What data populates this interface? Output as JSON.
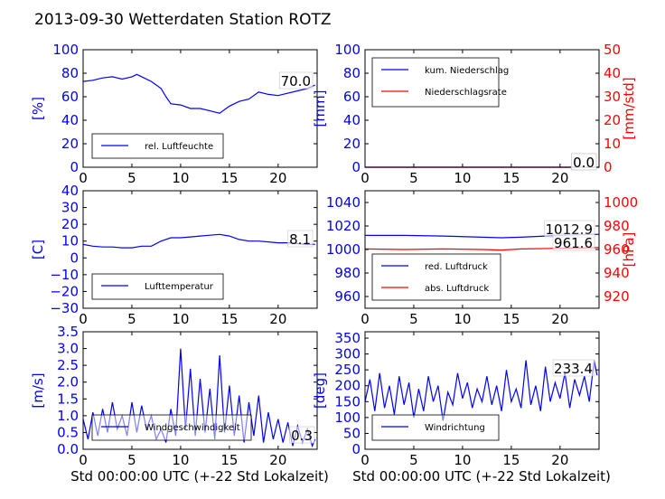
{
  "title": "2013-09-30 Wetterdaten Station ROTZ",
  "xlabel": "Std 00:00:00 UTC (+-22 Std Lokalzeit)",
  "colors": {
    "blue": "#0000ff",
    "red": "#ff0000",
    "black": "#000000"
  },
  "chart_data": [
    {
      "type": "line",
      "ylabel": "[%]",
      "ylim": [
        0,
        100
      ],
      "yticks": [
        "0",
        "20",
        "40",
        "60",
        "80",
        "100"
      ],
      "xlim": [
        0,
        24
      ],
      "xticks": [
        "0",
        "5",
        "10",
        "15",
        "20"
      ],
      "legend": {
        "placement": "lower-left",
        "entries": [
          "rel. Luftfeuchte"
        ]
      },
      "last_labels": [
        "70.0"
      ],
      "series": [
        {
          "name": "rel. Luftfeuchte",
          "axis": "left",
          "color": "#0000ff",
          "x": [
            0,
            1,
            2,
            3,
            4,
            5,
            5.5,
            6,
            7,
            8,
            8.5,
            9,
            10,
            11,
            12,
            13,
            13.5,
            14,
            15,
            16,
            17,
            18,
            19,
            20,
            21,
            22,
            23,
            23.8
          ],
          "y": [
            73,
            74,
            76,
            77,
            75,
            77,
            79,
            77,
            73,
            67,
            60,
            54,
            53,
            50,
            50,
            48,
            47,
            46,
            52,
            56,
            58,
            64,
            62,
            61,
            63,
            65,
            67,
            70
          ]
        }
      ]
    },
    {
      "type": "line",
      "ylabel": "[mm]",
      "ylabel_right": "[mm/std]",
      "ylim": [
        0,
        100
      ],
      "ylim_right": [
        0,
        50
      ],
      "yticks": [
        "0",
        "20",
        "40",
        "60",
        "80",
        "100"
      ],
      "yticks_right": [
        "0",
        "10",
        "20",
        "30",
        "40",
        "50"
      ],
      "xlim": [
        0,
        24
      ],
      "xticks": [
        "0",
        "5",
        "10",
        "15",
        "20"
      ],
      "legend": {
        "placement": "upper-left",
        "entries": [
          "kum. Niederschlag",
          "Niederschlagsrate"
        ]
      },
      "last_labels": [
        "0.0",
        "0.0"
      ],
      "series": [
        {
          "name": "kum. Niederschlag",
          "axis": "left",
          "color": "#0000ff",
          "x": [
            0,
            24
          ],
          "y": [
            0,
            0
          ]
        },
        {
          "name": "Niederschlagsrate",
          "axis": "right",
          "color": "#ff0000",
          "x": [
            0,
            24
          ],
          "y": [
            0,
            0
          ]
        }
      ]
    },
    {
      "type": "line",
      "ylabel": "[C]",
      "ylim": [
        -30,
        40
      ],
      "yticks": [
        "−30",
        "−20",
        "−10",
        "0",
        "10",
        "20",
        "30",
        "40"
      ],
      "xlim": [
        0,
        24
      ],
      "xticks": [
        "0",
        "5",
        "10",
        "15",
        "20"
      ],
      "legend": {
        "placement": "lower-left",
        "entries": [
          "Lufttemperatur"
        ]
      },
      "last_labels": [
        "8.1"
      ],
      "series": [
        {
          "name": "Lufttemperatur",
          "axis": "left",
          "color": "#0000ff",
          "x": [
            0,
            1,
            2,
            3,
            4,
            5,
            6,
            7,
            8,
            9,
            10,
            11,
            12,
            13,
            14,
            15,
            16,
            17,
            18,
            19,
            20,
            21,
            22,
            23,
            23.8
          ],
          "y": [
            8,
            7,
            6.5,
            6.5,
            6,
            6,
            7,
            7,
            10,
            12,
            12,
            12.5,
            13,
            13.5,
            14,
            13,
            11,
            10,
            10,
            9.5,
            9,
            9,
            8.5,
            8,
            8.1
          ]
        }
      ]
    },
    {
      "type": "line",
      "ylabel_right": "[hPa]",
      "ylim": [
        950,
        1050
      ],
      "ylim_right": [
        910,
        1010
      ],
      "yticks": [
        "960",
        "980",
        "1000",
        "1020",
        "1040"
      ],
      "yticks_right": [
        "920",
        "940",
        "960",
        "980",
        "1000"
      ],
      "xlim": [
        0,
        24
      ],
      "xticks": [
        "0",
        "5",
        "10",
        "15",
        "20"
      ],
      "legend": {
        "placement": "lower-left",
        "entries": [
          "red. Luftdruck",
          "abs. Luftdruck"
        ]
      },
      "last_labels": [
        "1012.9",
        "961.6"
      ],
      "series": [
        {
          "name": "red. Luftdruck",
          "axis": "left",
          "color": "#0000ff",
          "x": [
            0,
            4,
            8,
            12,
            14,
            16,
            20,
            24
          ],
          "y": [
            1012,
            1012,
            1011.5,
            1010.5,
            1010,
            1010.5,
            1012,
            1012.9
          ]
        },
        {
          "name": "abs. Luftdruck",
          "axis": "right",
          "color": "#ff0000",
          "x": [
            0,
            4,
            8,
            12,
            14,
            16,
            20,
            24
          ],
          "y": [
            960.5,
            960,
            960.5,
            960,
            959.5,
            960.5,
            961,
            961.6
          ]
        }
      ]
    },
    {
      "type": "line",
      "ylabel": "[m/s]",
      "ylim": [
        0,
        3.5
      ],
      "yticks": [
        "0.0",
        "0.5",
        "1.0",
        "1.5",
        "2.0",
        "2.5",
        "3.0",
        "3.5"
      ],
      "xlim": [
        0,
        24
      ],
      "xticks": [
        "0",
        "5",
        "10",
        "15",
        "20"
      ],
      "legend": {
        "placement": "lower-left",
        "entries": [
          "Windgeschwindigkeit"
        ]
      },
      "last_labels": [
        "0.3"
      ],
      "series": [
        {
          "name": "Windgeschwindigkeit",
          "axis": "left",
          "color": "#0000ff",
          "x": [
            0,
            0.5,
            1,
            1.5,
            2,
            2.5,
            3,
            3.5,
            4,
            4.5,
            5,
            5.5,
            6,
            6.5,
            7,
            7.5,
            8,
            8.5,
            9,
            9.5,
            10,
            10.5,
            11,
            11.5,
            12,
            12.5,
            13,
            13.5,
            14,
            14.5,
            15,
            15.5,
            16,
            16.5,
            17,
            17.5,
            18,
            18.5,
            19,
            19.5,
            20,
            20.5,
            21,
            21.5,
            22,
            22.5,
            23,
            23.5,
            23.8
          ],
          "y": [
            0.9,
            0.3,
            1.1,
            0.4,
            1.2,
            0.5,
            1.4,
            0.6,
            1.0,
            0.4,
            1.4,
            0.5,
            1.3,
            0.6,
            1.0,
            0.3,
            0.6,
            0.2,
            1.2,
            0.4,
            3.0,
            0.6,
            2.4,
            0.4,
            2.1,
            0.5,
            1.8,
            0.3,
            2.8,
            0.5,
            1.9,
            0.4,
            1.6,
            0.2,
            1.4,
            0.4,
            1.6,
            0.2,
            1.1,
            0.3,
            0.9,
            0.2,
            0.8,
            0.1,
            0.7,
            0.2,
            0.6,
            0.1,
            0.3
          ]
        }
      ]
    },
    {
      "type": "line",
      "ylabel": "[deg]",
      "ylim": [
        0,
        370
      ],
      "yticks": [
        "0",
        "50",
        "100",
        "150",
        "200",
        "250",
        "300",
        "350"
      ],
      "xlim": [
        0,
        24
      ],
      "xticks": [
        "0",
        "5",
        "10",
        "15",
        "20"
      ],
      "legend": {
        "placement": "lower-left",
        "entries": [
          "Windrichtung"
        ]
      },
      "last_labels": [
        "233.4"
      ],
      "series": [
        {
          "name": "Windrichtung",
          "axis": "left",
          "color": "#0000ff",
          "x": [
            0,
            0.5,
            1,
            1.5,
            2,
            2.5,
            3,
            3.5,
            4,
            4.5,
            5,
            5.5,
            6,
            6.5,
            7,
            7.5,
            8,
            8.5,
            9,
            9.5,
            10,
            10.5,
            11,
            11.5,
            12,
            12.5,
            13,
            13.5,
            14,
            14.5,
            15,
            15.5,
            16,
            16.5,
            17,
            17.5,
            18,
            18.5,
            19,
            19.5,
            20,
            20.5,
            21,
            21.5,
            22,
            22.5,
            23,
            23.5,
            23.8
          ],
          "y": [
            150,
            220,
            120,
            240,
            130,
            200,
            110,
            230,
            140,
            210,
            100,
            190,
            120,
            230,
            150,
            200,
            90,
            180,
            140,
            240,
            160,
            210,
            130,
            190,
            150,
            230,
            140,
            200,
            120,
            250,
            150,
            190,
            130,
            280,
            140,
            200,
            120,
            260,
            150,
            210,
            160,
            240,
            130,
            220,
            170,
            230,
            150,
            280,
            233
          ]
        }
      ]
    }
  ]
}
